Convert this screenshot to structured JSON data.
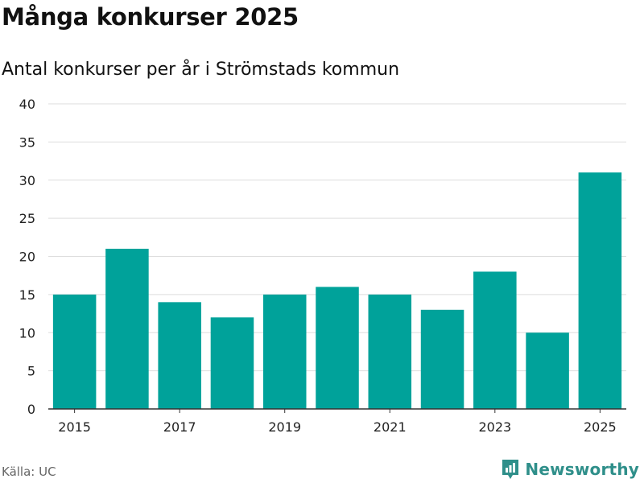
{
  "header": {
    "title": "Många konkurser 2025",
    "subtitle": "Antal konkurser per år i Strömstads kommun"
  },
  "footer": {
    "source": "Källa: UC",
    "brand": "Newsworthy",
    "brand_icon": "newsworthy-logo-icon"
  },
  "colors": {
    "bar": "#00a29a",
    "grid": "#dddddd",
    "axis": "#333333",
    "brand": "#2f8f8a"
  },
  "chart_data": {
    "type": "bar",
    "title": "Många konkurser 2025",
    "subtitle": "Antal konkurser per år i Strömstads kommun",
    "xlabel": "",
    "ylabel": "",
    "categories": [
      2015,
      2016,
      2017,
      2018,
      2019,
      2020,
      2021,
      2022,
      2023,
      2024,
      2025
    ],
    "values": [
      15,
      21,
      14,
      12,
      15,
      16,
      15,
      13,
      18,
      10,
      31
    ],
    "x_tick_labels": [
      "2015",
      "2017",
      "2019",
      "2021",
      "2023",
      "2025"
    ],
    "y_ticks": [
      0,
      5,
      10,
      15,
      20,
      25,
      30,
      35,
      40
    ],
    "ylim": [
      0,
      40
    ],
    "grid": true,
    "legend": "none"
  }
}
